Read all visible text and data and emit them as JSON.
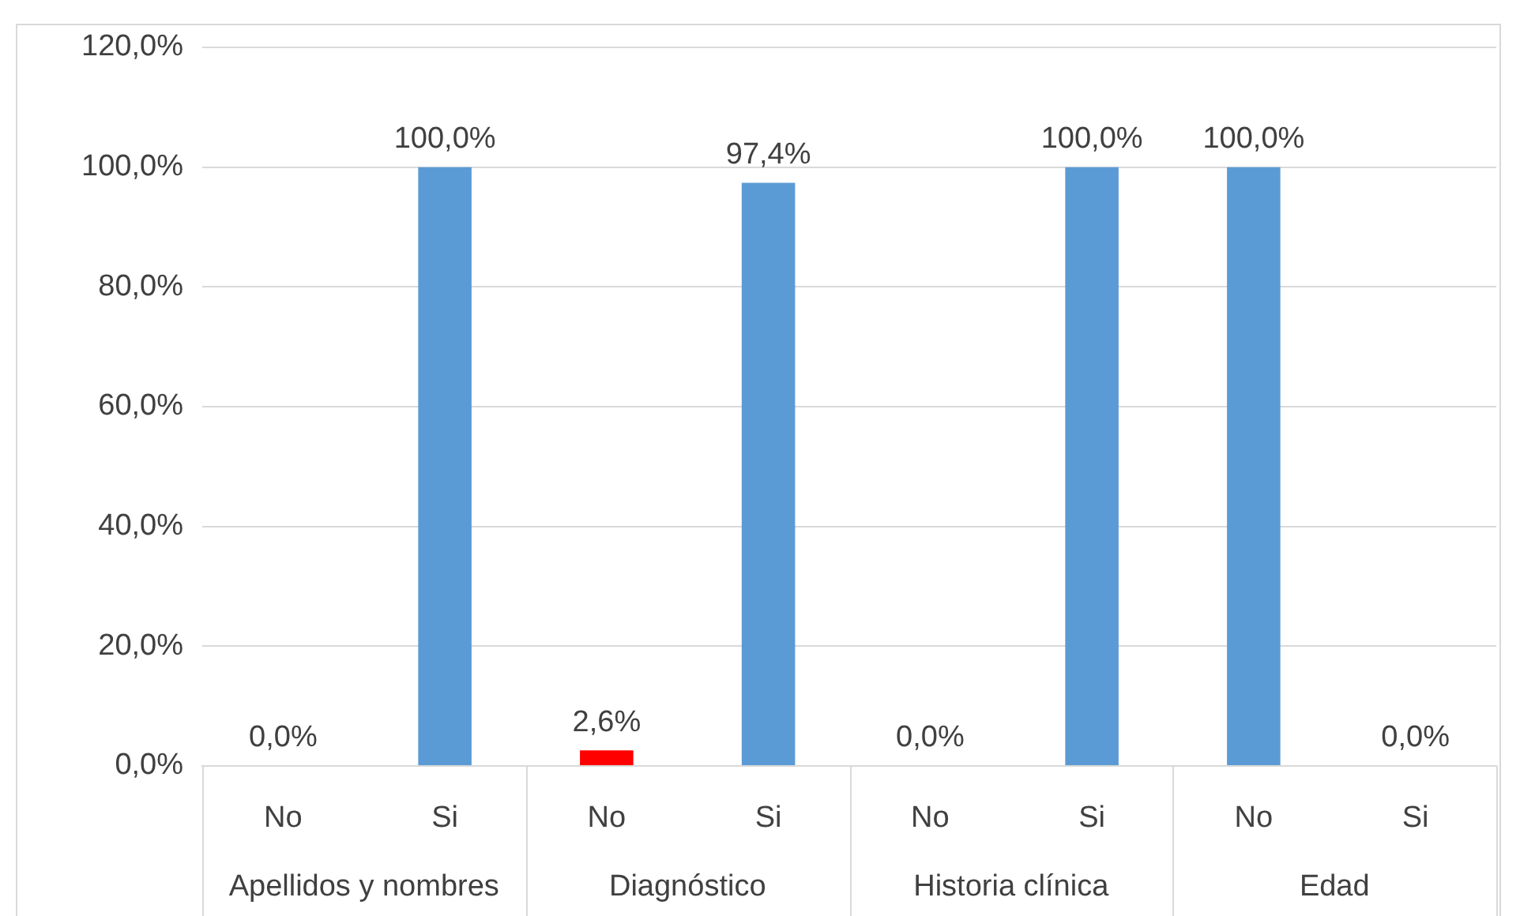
{
  "chart_data": {
    "type": "bar",
    "categories": [
      "No",
      "Si",
      "No",
      "Si",
      "No",
      "Si",
      "No",
      "Si"
    ],
    "annotations": [
      "Apellidos y nombres",
      "Diagnóstico",
      "Historia clínica",
      "Edad"
    ],
    "values": [
      0,
      100,
      2.6,
      97.4,
      0,
      100,
      100,
      0
    ],
    "colors": [
      "#5b9bd5",
      "#5b9bd5",
      "#ff0000",
      "#5b9bd5",
      "#5b9bd5",
      "#5b9bd5",
      "#5b9bd5",
      "#5b9bd5"
    ],
    "value_labels": [
      "0,0%",
      "100,0%",
      "2,6%",
      "97,4%",
      "0,0%",
      "100,0%",
      "100,0%",
      "0,0%"
    ],
    "ylim": [
      0,
      120
    ],
    "yticks": [
      {
        "value": 0,
        "label": "0,0%"
      },
      {
        "value": 20,
        "label": "20,0%"
      },
      {
        "value": 40,
        "label": "40,0%"
      },
      {
        "value": 60,
        "label": "60,0%"
      },
      {
        "value": 80,
        "label": "80,0%"
      },
      {
        "value": 100,
        "label": "100,0%"
      },
      {
        "value": 120,
        "label": "120,0%"
      }
    ],
    "grid": "y",
    "legend": false
  }
}
